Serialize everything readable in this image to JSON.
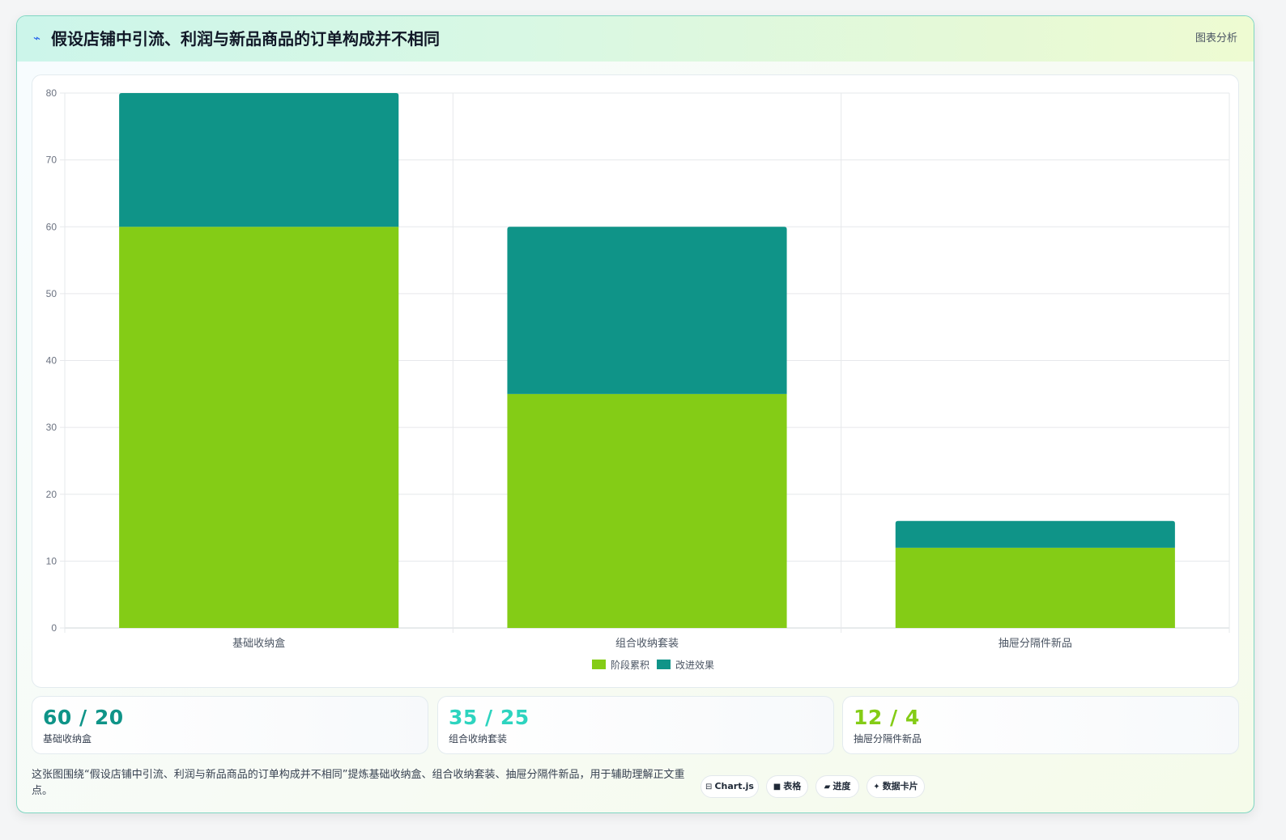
{
  "header": {
    "icon": "⌁",
    "title": "假设店铺中引流、利润与新品商品的订单构成并不相同",
    "right_link": "图表分析"
  },
  "chart_data": {
    "type": "bar",
    "stacked": true,
    "categories": [
      "基础收纳盒",
      "组合收纳套装",
      "抽屉分隔件新品"
    ],
    "series": [
      {
        "name": "阶段累积",
        "values": [
          60,
          35,
          12
        ],
        "color": "#84cc16"
      },
      {
        "name": "改进效果",
        "values": [
          20,
          25,
          4
        ],
        "color": "#0f9488"
      }
    ],
    "ylim": [
      0,
      80
    ],
    "yticks": [
      0,
      10,
      20,
      30,
      40,
      50,
      60,
      70,
      80
    ],
    "grid": true,
    "legend": "bottom"
  },
  "stats": [
    {
      "value": "60 / 20",
      "label": "基础收纳盒",
      "color": "#0f9488"
    },
    {
      "value": "35 / 25",
      "label": "组合收纳套装",
      "color": "#2dd4bf"
    },
    {
      "value": "12 / 4",
      "label": "抽屉分隔件新品",
      "color": "#84cc16"
    }
  ],
  "footer": {
    "description": "这张图围绕“假设店铺中引流、利润与新品商品的订单构成并不相同”提炼基础收纳盒、组合收纳套装、抽屉分隔件新品，用于辅助理解正文重点。",
    "tags": [
      {
        "icon": "⊟",
        "label": "Chart.js"
      },
      {
        "icon": "■",
        "label": "表格"
      },
      {
        "icon": "▰",
        "label": "进度"
      },
      {
        "icon": "✦",
        "label": "数据卡片"
      }
    ]
  }
}
